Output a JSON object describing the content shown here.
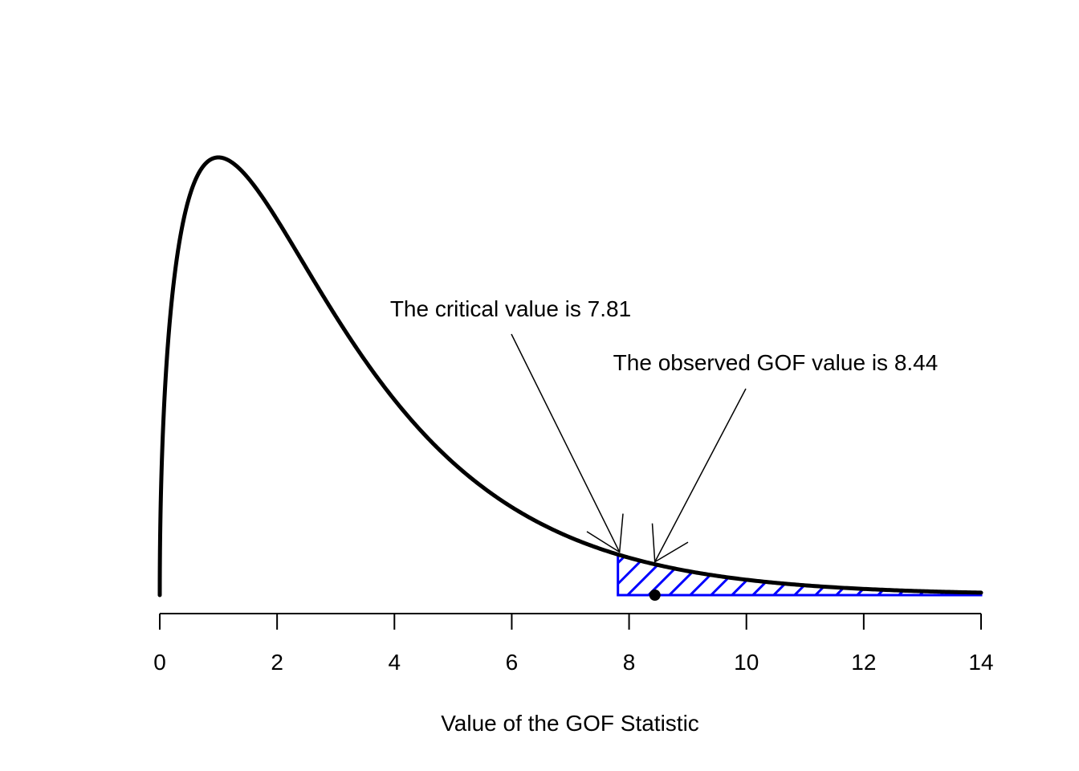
{
  "chart_data": {
    "type": "line",
    "title": "",
    "xlabel": "Value of the GOF Statistic",
    "ylabel": "",
    "xlim": [
      0,
      14
    ],
    "x_ticks": [
      0,
      2,
      4,
      6,
      8,
      10,
      12,
      14
    ],
    "tick_labels": [
      "0",
      "2",
      "4",
      "6",
      "8",
      "10",
      "12",
      "14"
    ],
    "grid": false,
    "distribution": "chi-square",
    "degrees_of_freedom": 3,
    "critical_value": 7.81,
    "observed_value": 8.44,
    "shaded_region": {
      "from": 7.81,
      "to": 14,
      "pattern": "hatch"
    },
    "annotations": [
      {
        "text": "The critical value is 7.81",
        "points_to_x": 7.81
      },
      {
        "text": "The observed GOF value is 8.44",
        "points_to_x": 8.44
      }
    ],
    "colors": {
      "curve": "#000000",
      "shade": "#0000ff",
      "observed_point": "#000000"
    }
  }
}
